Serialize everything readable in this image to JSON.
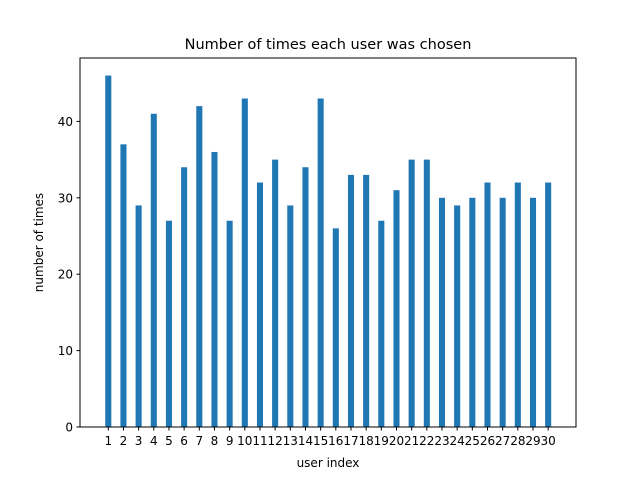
{
  "chart_data": {
    "type": "bar",
    "title": "Number of times each user was chosen",
    "xlabel": "user index",
    "ylabel": "number of times",
    "categories": [
      "1",
      "2",
      "3",
      "4",
      "5",
      "6",
      "7",
      "8",
      "9",
      "10",
      "11",
      "12",
      "13",
      "14",
      "15",
      "16",
      "17",
      "18",
      "19",
      "20",
      "21",
      "22",
      "23",
      "24",
      "25",
      "26",
      "27",
      "28",
      "29",
      "30"
    ],
    "values": [
      46,
      37,
      29,
      41,
      27,
      34,
      42,
      36,
      27,
      43,
      32,
      35,
      29,
      34,
      43,
      26,
      33,
      33,
      27,
      31,
      35,
      35,
      30,
      29,
      30,
      32,
      30,
      32,
      30,
      32
    ],
    "ylim": [
      0,
      48.3
    ],
    "yticks": [
      0,
      10,
      20,
      30,
      40
    ],
    "grid": false,
    "bar_color": "#1f77b4"
  }
}
